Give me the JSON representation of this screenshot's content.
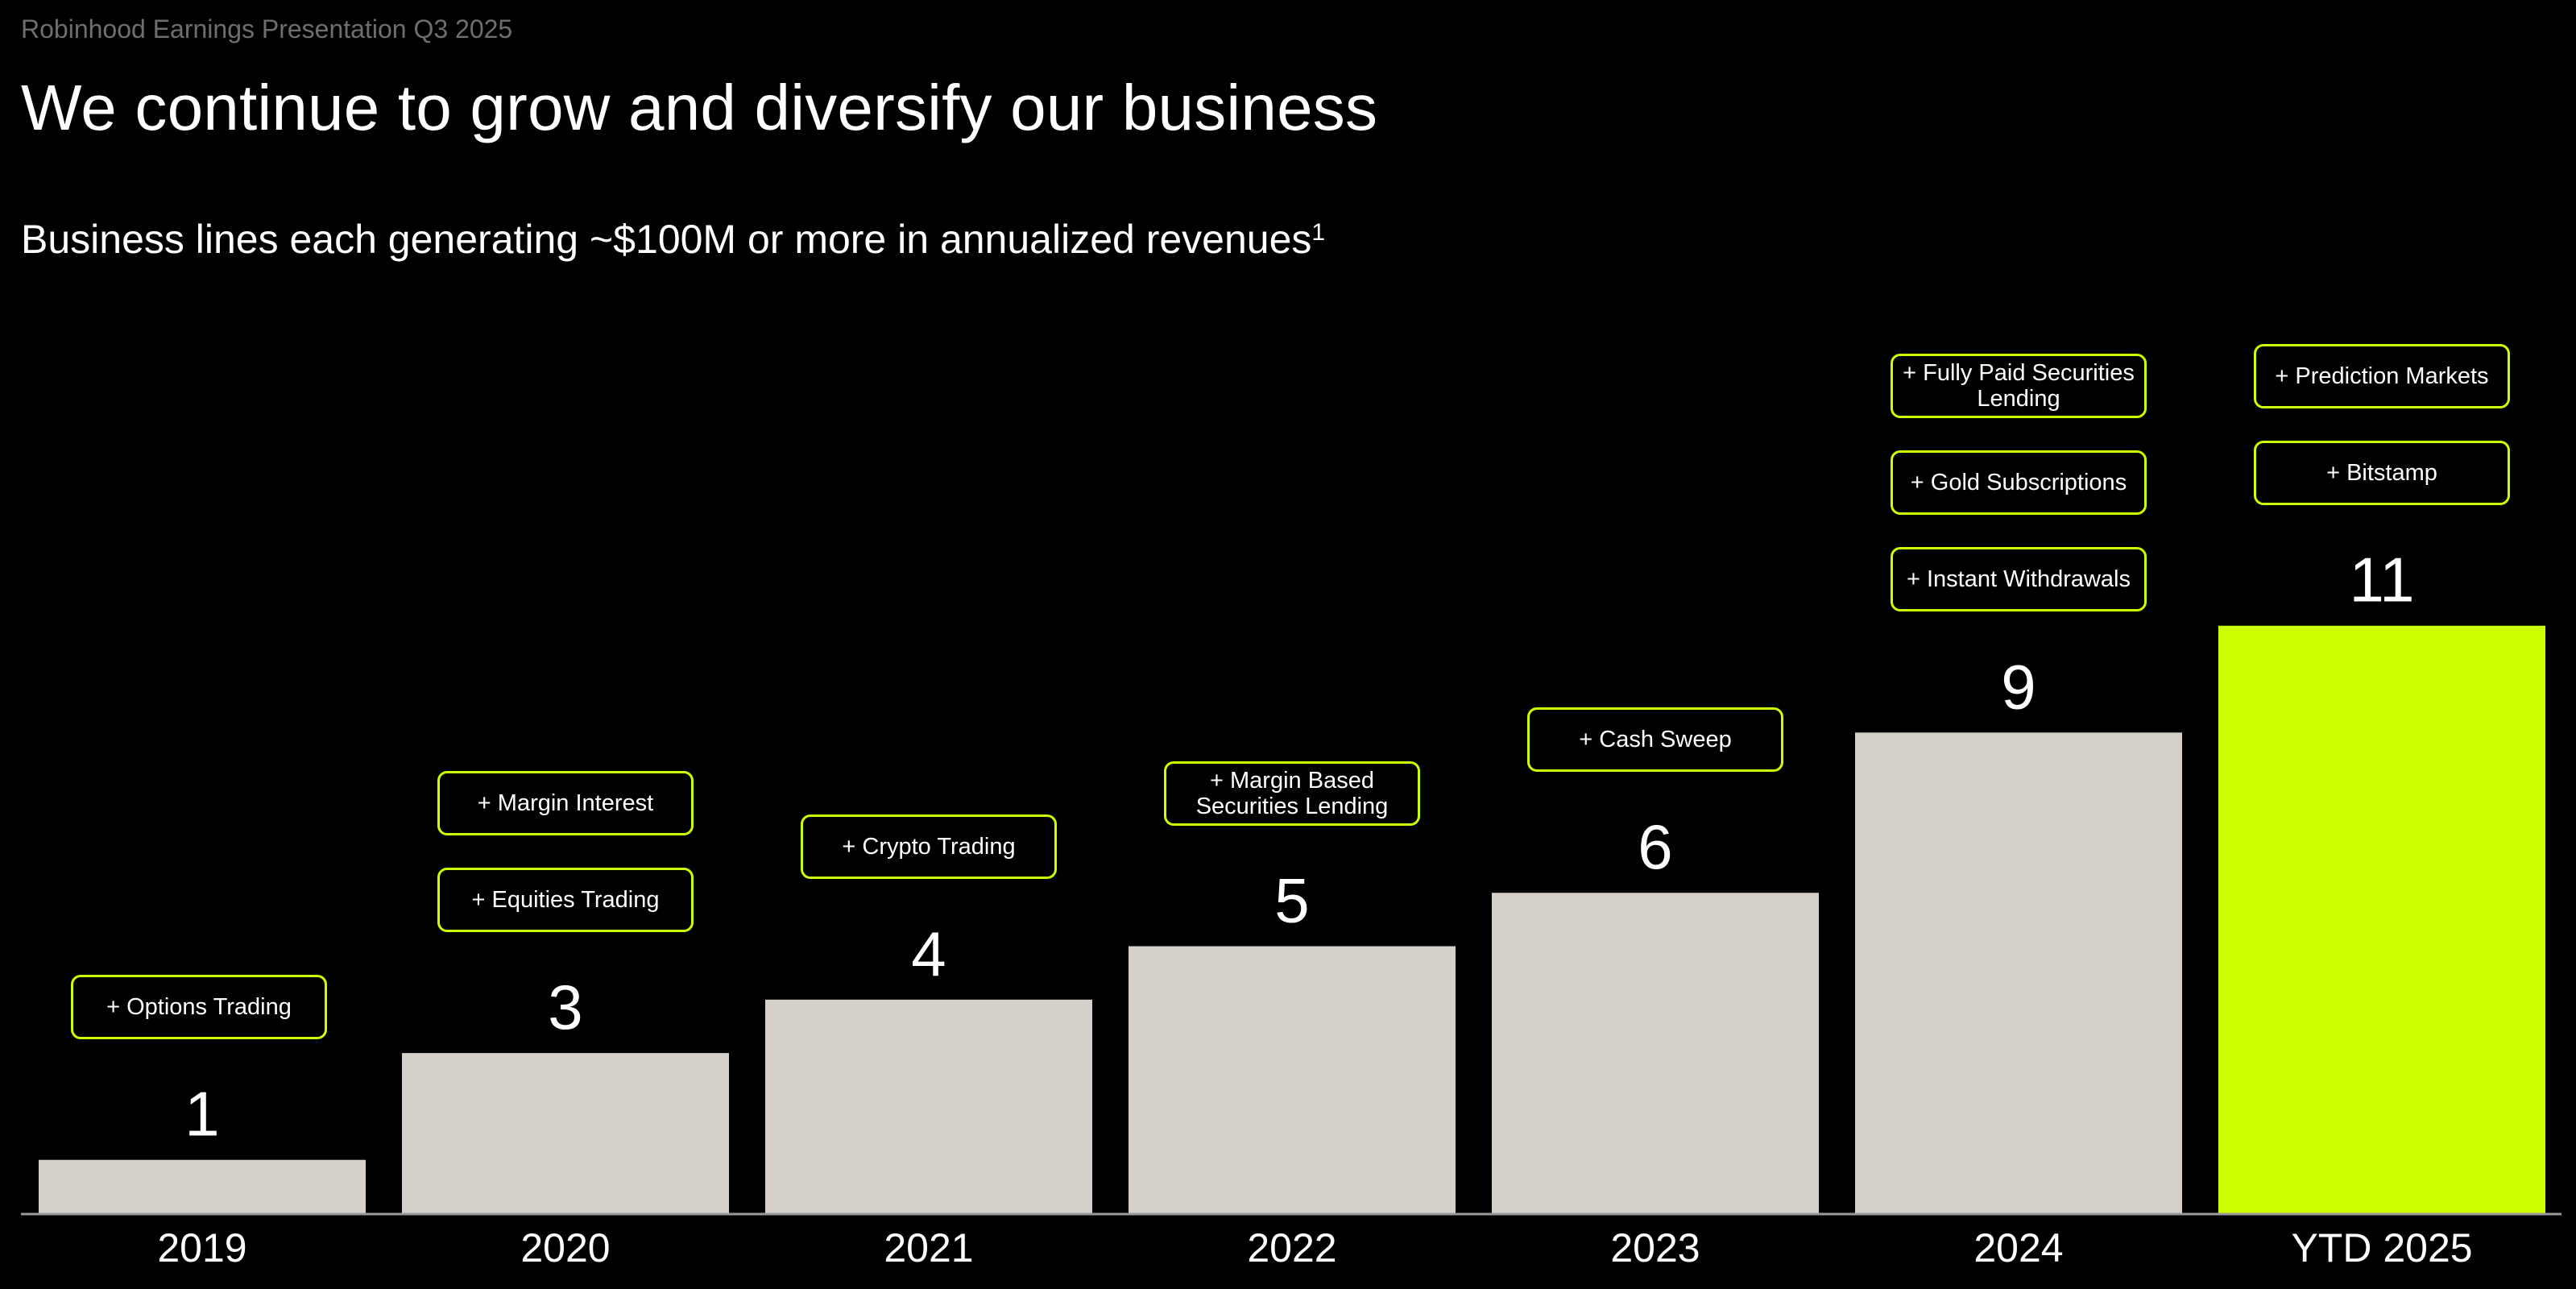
{
  "header": {
    "presentation_label": "Robinhood Earnings Presentation Q3 2025",
    "title": "We continue to grow and diversify our business",
    "subtitle": "Business lines each generating ~$100M or more in annualized revenues",
    "subtitle_footnote": "1"
  },
  "colors": {
    "background": "#000000",
    "bar": "#d5d0ca",
    "highlight_bar": "#ccff00",
    "pill_border": "#ccff00",
    "text": "#ffffff",
    "muted_text": "#6e6e6e"
  },
  "chart_data": {
    "type": "bar",
    "title": "Business lines each generating ~$100M or more in annualized revenues",
    "xlabel": "",
    "ylabel": "",
    "categories": [
      "2019",
      "2020",
      "2021",
      "2022",
      "2023",
      "2024",
      "YTD 2025"
    ],
    "values": [
      1,
      3,
      4,
      5,
      6,
      9,
      11
    ],
    "highlighted_category": "YTD 2025",
    "ylim": [
      0,
      11
    ],
    "grid": false,
    "annotations": [
      {
        "category": "2019",
        "items": [
          "+ Options Trading"
        ]
      },
      {
        "category": "2020",
        "items": [
          "+ Margin Interest",
          "+ Equities Trading"
        ]
      },
      {
        "category": "2021",
        "items": [
          "+ Crypto Trading"
        ]
      },
      {
        "category": "2022",
        "items": [
          "+ Margin Based Securities Lending"
        ]
      },
      {
        "category": "2023",
        "items": [
          "+ Cash Sweep"
        ]
      },
      {
        "category": "2024",
        "items": [
          "+ Fully Paid Securities Lending",
          "+ Gold Subscriptions",
          "+ Instant Withdrawals"
        ]
      },
      {
        "category": "YTD 2025",
        "items": [
          "+ Prediction Markets",
          "+ Bitstamp"
        ]
      }
    ]
  }
}
